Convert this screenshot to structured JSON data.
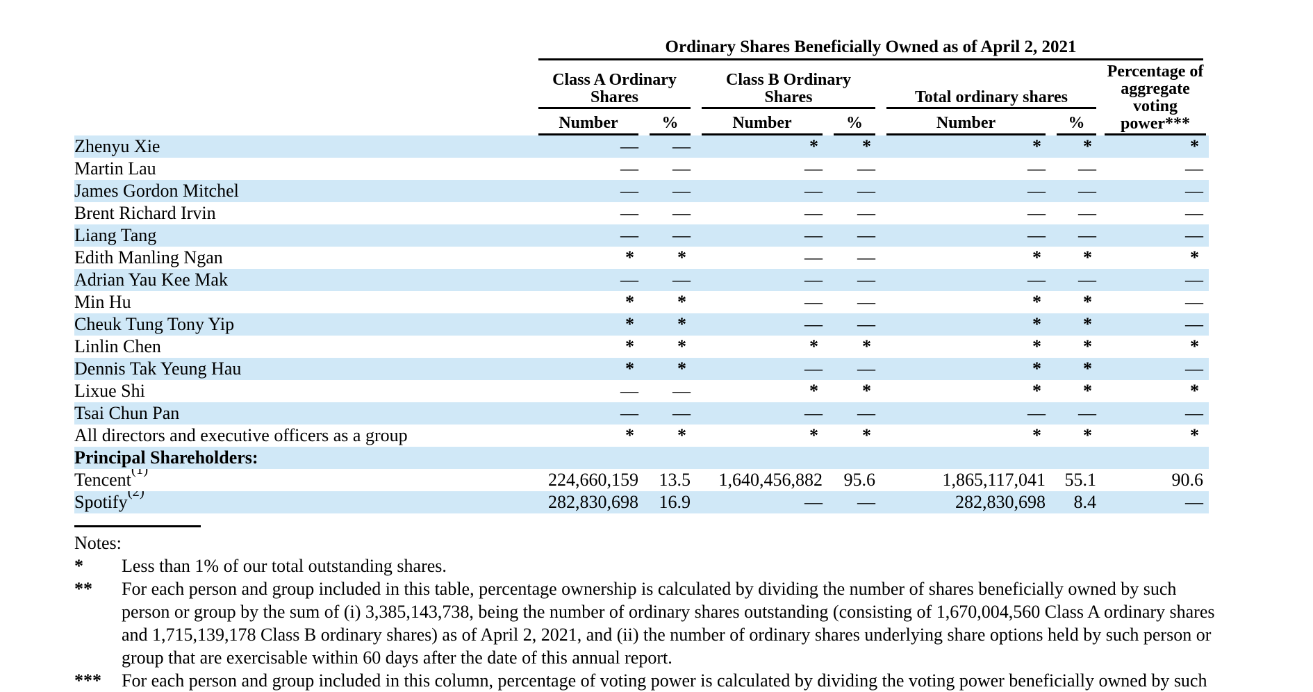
{
  "table": {
    "title": "Ordinary Shares Beneficially Owned as of April 2, 2021",
    "groups": {
      "class_a": "Class A Ordinary\nShares",
      "class_b": "Class B Ordinary\nShares",
      "total": "Total ordinary shares",
      "voting_top": "Percentage of\naggregate\nvoting",
      "voting_bottom": "power***"
    },
    "sub": {
      "number": "Number",
      "percent": "%"
    },
    "rows": [
      {
        "name": "Zhenyu Xie",
        "values": [
          "—",
          "—",
          "*",
          "*",
          "*",
          "*",
          "*"
        ]
      },
      {
        "name": "Martin Lau",
        "values": [
          "—",
          "—",
          "—",
          "—",
          "—",
          "—",
          "—"
        ]
      },
      {
        "name": "James Gordon Mitchel",
        "values": [
          "—",
          "—",
          "—",
          "—",
          "—",
          "—",
          "—"
        ]
      },
      {
        "name": "Brent Richard Irvin",
        "values": [
          "—",
          "—",
          "—",
          "—",
          "—",
          "—",
          "—"
        ]
      },
      {
        "name": "Liang Tang",
        "values": [
          "—",
          "—",
          "—",
          "—",
          "—",
          "—",
          "—"
        ]
      },
      {
        "name": "Edith Manling Ngan",
        "values": [
          "*",
          "*",
          "—",
          "—",
          "*",
          "*",
          "*"
        ]
      },
      {
        "name": "Adrian Yau Kee Mak",
        "values": [
          "—",
          "—",
          "—",
          "—",
          "—",
          "—",
          "—"
        ]
      },
      {
        "name": "Min Hu",
        "values": [
          "*",
          "*",
          "—",
          "—",
          "*",
          "*",
          "—"
        ]
      },
      {
        "name": "Cheuk Tung Tony Yip",
        "values": [
          "*",
          "*",
          "—",
          "—",
          "*",
          "*",
          "—"
        ]
      },
      {
        "name": "Linlin Chen",
        "values": [
          "*",
          "*",
          "*",
          "*",
          "*",
          "*",
          "*"
        ]
      },
      {
        "name": "Dennis Tak Yeung Hau",
        "values": [
          "*",
          "*",
          "—",
          "—",
          "*",
          "*",
          "—"
        ]
      },
      {
        "name": "Lixue Shi",
        "values": [
          "—",
          "—",
          "*",
          "*",
          "*",
          "*",
          "*"
        ]
      },
      {
        "name": "Tsai Chun Pan",
        "values": [
          "—",
          "—",
          "—",
          "—",
          "—",
          "—",
          "—"
        ]
      },
      {
        "name": "All directors and executive officers as a group",
        "values": [
          "*",
          "*",
          "*",
          "*",
          "*",
          "*",
          "*"
        ]
      },
      {
        "name": "Principal Shareholders:",
        "bold": true,
        "values": [
          "",
          "",
          "",
          "",
          "",
          "",
          ""
        ]
      },
      {
        "name": "Tencent",
        "sup": "(1)",
        "values": [
          "224,660,159",
          "13.5",
          "1,640,456,882",
          "95.6",
          "1,865,117,041",
          "55.1",
          "90.6"
        ]
      },
      {
        "name": "Spotify",
        "sup": "(2)",
        "values": [
          "282,830,698",
          "16.9",
          "—",
          "—",
          "282,830,698",
          "8.4",
          "—"
        ]
      }
    ]
  },
  "notes": {
    "title": "Notes:",
    "items": [
      {
        "marker": "*",
        "text": "Less than 1% of our total outstanding shares."
      },
      {
        "marker": "**",
        "text": "For each person and group included in this table, percentage ownership is calculated by dividing the number of shares beneficially owned by such person or group by the sum of (i) 3,385,143,738, being the number of ordinary shares outstanding (consisting of 1,670,004,560 Class A ordinary shares and 1,715,139,178 Class B ordinary shares) as of April 2, 2021, and (ii) the number of ordinary shares underlying share options held by such person or group that are exercisable within 60 days after the date of this annual report."
      },
      {
        "marker": "***",
        "text": "For each person and group included in this column, percentage of voting power is calculated by dividing the voting power beneficially owned by such"
      }
    ]
  },
  "colors": {
    "row_shade": "#d0e8f7",
    "rule": "#000000"
  }
}
